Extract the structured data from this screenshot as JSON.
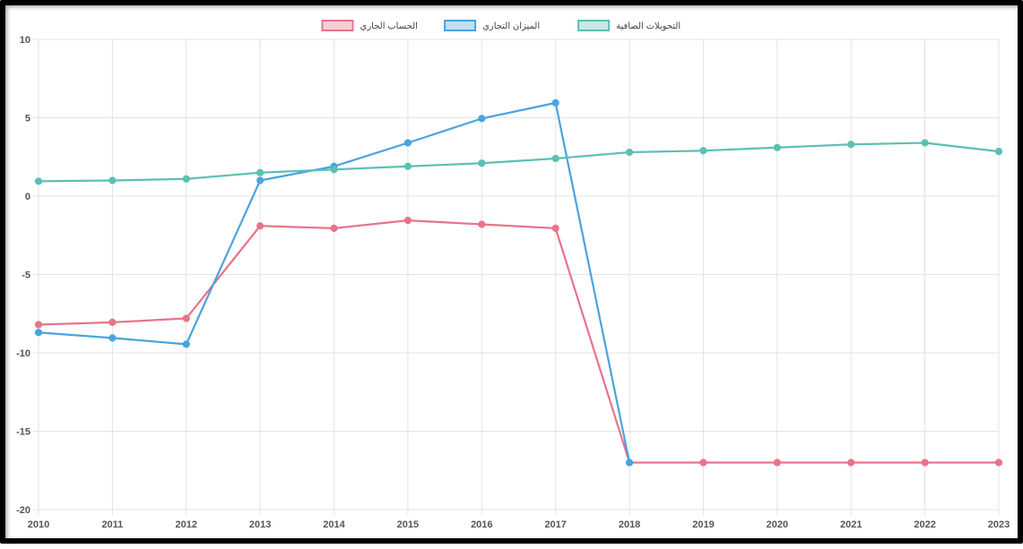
{
  "chart_data": {
    "type": "line",
    "title": "",
    "xlabel": "",
    "ylabel": "",
    "ylim": [
      -20,
      10
    ],
    "y_ticks": [
      "10",
      "5",
      "0",
      "-5",
      "-10",
      "-15",
      "-20"
    ],
    "categories": [
      "2010",
      "2011",
      "2012",
      "2013",
      "2014",
      "2015",
      "2016",
      "2017",
      "2018",
      "2019",
      "2020",
      "2021",
      "2022",
      "2023"
    ],
    "legend_position": "top-center",
    "series": [
      {
        "name": "الحساب الجاري",
        "color": "#e8738a",
        "values": [
          -8.2,
          -8.05,
          -7.8,
          -1.9,
          -2.05,
          -1.55,
          -1.8,
          -2.05,
          -17.0,
          -17.0,
          -17.0,
          -17.0,
          -17.0,
          -17.0
        ]
      },
      {
        "name": "الميزان التجاري",
        "color": "#4aa3df",
        "values": [
          -8.7,
          -9.05,
          -9.45,
          1.0,
          1.9,
          3.4,
          4.95,
          5.95,
          -17.0,
          null,
          null,
          null,
          null,
          null
        ]
      },
      {
        "name": "التحويلات الصافية",
        "color": "#5cbfb5",
        "values": [
          0.95,
          1.0,
          1.1,
          1.5,
          1.7,
          1.9,
          2.1,
          2.4,
          2.8,
          2.9,
          3.1,
          3.3,
          3.4,
          2.85
        ]
      }
    ]
  }
}
